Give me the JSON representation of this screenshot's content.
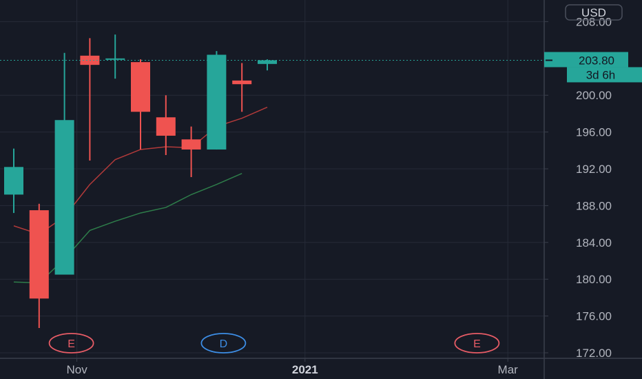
{
  "chart_data": {
    "type": "candlestick",
    "currency": "USD",
    "ylim": [
      171,
      211
    ],
    "y_ticks": [
      {
        "value": 208,
        "label": "208.00"
      },
      {
        "value": 200,
        "label": "200.00"
      },
      {
        "value": 196,
        "label": "196.00"
      },
      {
        "value": 192,
        "label": "192.00"
      },
      {
        "value": 188,
        "label": "188.00"
      },
      {
        "value": 184,
        "label": "184.00"
      },
      {
        "value": 180,
        "label": "180.00"
      },
      {
        "value": 176,
        "label": "176.00"
      },
      {
        "value": 172,
        "label": "172.00"
      }
    ],
    "x_ticks": [
      {
        "index": 2,
        "label": "Nov",
        "bold": false
      },
      {
        "index": 11,
        "label": "2021",
        "bold": true
      },
      {
        "index": 19,
        "label": "Mar",
        "bold": false
      }
    ],
    "candles": [
      {
        "open": 189.2,
        "high": 194.2,
        "low": 187.2,
        "close": 192.2
      },
      {
        "open": 187.5,
        "high": 188.2,
        "low": 174.7,
        "close": 177.9
      },
      {
        "open": 180.5,
        "high": 204.6,
        "low": 180.5,
        "close": 197.3
      },
      {
        "open": 204.3,
        "high": 206.2,
        "low": 192.9,
        "close": 203.3
      },
      {
        "open": 204.0,
        "high": 206.6,
        "low": 201.8,
        "close": 204.0
      },
      {
        "open": 203.6,
        "high": 203.9,
        "low": 194.1,
        "close": 198.2
      },
      {
        "open": 197.6,
        "high": 200.0,
        "low": 193.5,
        "close": 195.6
      },
      {
        "open": 195.2,
        "high": 196.6,
        "low": 191.1,
        "close": 194.1
      },
      {
        "open": 194.1,
        "high": 204.8,
        "low": 194.1,
        "close": 204.4
      },
      {
        "open": 201.6,
        "high": 203.5,
        "low": 198.2,
        "close": 201.2
      },
      {
        "open": 203.4,
        "high": 203.9,
        "low": 202.7,
        "close": 203.8
      }
    ],
    "series": [
      {
        "color": "#b23a3a",
        "values": [
          185.8,
          184.9,
          186.8,
          190.3,
          193.0,
          194.1,
          194.4,
          194.3,
          196.6,
          197.5,
          198.7
        ]
      },
      {
        "color": "#2e7d4a",
        "values": [
          179.7,
          179.6,
          182.2,
          185.3,
          186.3,
          187.2,
          187.8,
          189.2,
          190.3,
          191.5,
          null
        ]
      }
    ],
    "last_price": {
      "value": 203.8,
      "label": "203.80",
      "countdown": "3d 6h"
    },
    "event_markers": [
      {
        "index": 2,
        "label": "E",
        "color": "#e85c66"
      },
      {
        "index": 8,
        "label": "D",
        "color": "#3d8ee6"
      },
      {
        "index": 18,
        "label": "E",
        "color": "#e85c66"
      }
    ],
    "colors": {
      "up": "#26a69a",
      "down": "#ef5350",
      "price_tag": "#26a69a",
      "grid": "#262b38",
      "background": "#161a25"
    }
  }
}
